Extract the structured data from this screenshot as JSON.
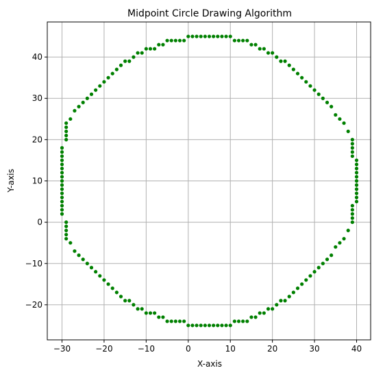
{
  "chart_data": {
    "type": "scatter",
    "title": "Midpoint Circle Drawing Algorithm",
    "xlabel": "X-axis",
    "ylabel": "Y-axis",
    "xlim": [
      -33.5,
      43.5
    ],
    "ylim": [
      -28.5,
      48.5
    ],
    "xticks": [
      -30,
      -20,
      -10,
      0,
      10,
      20,
      30,
      40
    ],
    "yticks": [
      -20,
      -10,
      0,
      10,
      20,
      30,
      40
    ],
    "grid": true,
    "marker_color": "#008000",
    "center": [
      5,
      10
    ],
    "radius": 35,
    "series": [
      {
        "x": [
          5,
          6,
          7,
          8,
          9,
          10,
          11,
          12,
          13,
          14,
          15,
          16,
          17,
          18,
          19,
          20,
          21,
          22,
          23,
          24,
          25,
          26,
          27,
          28,
          29,
          30,
          31,
          32,
          33,
          34,
          35,
          36,
          37,
          38,
          39,
          39,
          39,
          39,
          39,
          40,
          40,
          40,
          40,
          40,
          40,
          40,
          40,
          40,
          40,
          40,
          4,
          3,
          2,
          1,
          0,
          -1,
          -2,
          -3,
          -4,
          -5,
          -6,
          -7,
          -8,
          -9,
          -10,
          -11,
          -12,
          -13,
          -14,
          -15,
          -16,
          -17,
          -18,
          -19,
          -20,
          -21,
          -22,
          -23,
          -24,
          -25,
          -26,
          -27,
          -28,
          -29,
          -29,
          -29,
          -29,
          -29,
          -30,
          -30,
          -30,
          -30,
          -30,
          -30,
          -30,
          -30,
          -30,
          -30
        ],
        "y": [
          45,
          45,
          45,
          45,
          45,
          45,
          44,
          44,
          44,
          44,
          43,
          43,
          42,
          42,
          41,
          41,
          40,
          39,
          39,
          38,
          37,
          36,
          35,
          34,
          33,
          32,
          31,
          30,
          29,
          28,
          26,
          25,
          24,
          22,
          20,
          19,
          18,
          17,
          16,
          15,
          14,
          13,
          12,
          11,
          10,
          9,
          8,
          7,
          6,
          5,
          45,
          45,
          45,
          45,
          45,
          44,
          44,
          44,
          44,
          44,
          43,
          43,
          42,
          42,
          42,
          41,
          41,
          40,
          39,
          39,
          38,
          37,
          36,
          35,
          34,
          33,
          32,
          31,
          30,
          29,
          28,
          27,
          25,
          24,
          23,
          22,
          21,
          20,
          18,
          17,
          16,
          15,
          14,
          13,
          12,
          11,
          10,
          9
        ]
      }
    ]
  }
}
